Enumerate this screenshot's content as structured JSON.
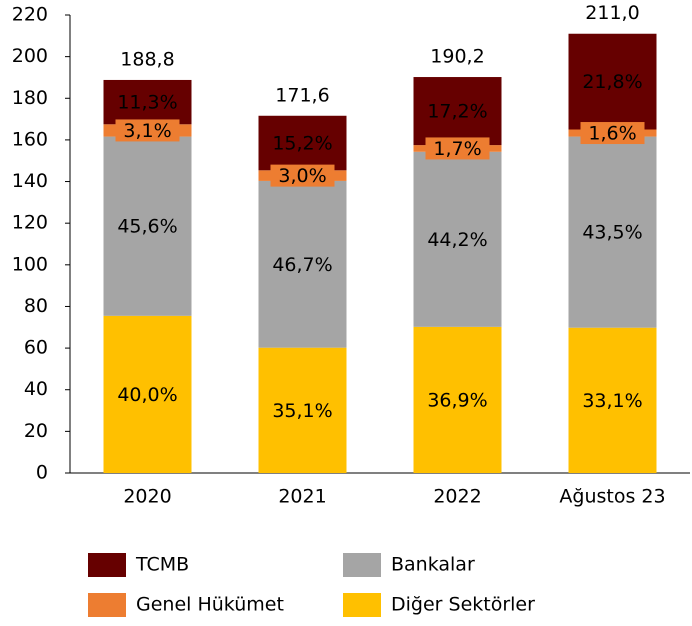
{
  "chart_data": {
    "type": "stacked_bar",
    "categories": [
      "2020",
      "2021",
      "2022",
      "Ağustos 23"
    ],
    "series": [
      {
        "name": "Diğer Sektörler",
        "color": "#ffc000",
        "values": [
          75.5,
          60.2,
          70.2,
          69.8
        ],
        "share_labels": [
          "40,0%",
          "35,1%",
          "36,9%",
          "33,1%"
        ]
      },
      {
        "name": "Bankalar",
        "color": "#a5a5a5",
        "values": [
          86.1,
          80.1,
          84.1,
          91.8
        ],
        "share_labels": [
          "45,6%",
          "46,7%",
          "44,2%",
          "43,5%"
        ]
      },
      {
        "name": "Genel Hükümet",
        "color": "#ed7d31",
        "values": [
          5.9,
          5.1,
          3.2,
          3.4
        ],
        "share_labels": [
          "3,1%",
          "3,0%",
          "1,7%",
          "1,6%"
        ]
      },
      {
        "name": "TCMB",
        "color": "#660000",
        "values": [
          21.3,
          26.2,
          32.7,
          46.0
        ],
        "share_labels": [
          "11,3%",
          "15,2%",
          "17,2%",
          "21,8%"
        ]
      }
    ],
    "totals": {
      "values": [
        188.8,
        171.6,
        190.2,
        211.0
      ],
      "value_labels": [
        "188,8",
        "171,6",
        "190,2",
        "211,0"
      ]
    },
    "ylim": [
      0,
      220
    ],
    "yticks": [
      0,
      20,
      40,
      60,
      80,
      100,
      120,
      140,
      160,
      180,
      200,
      220
    ]
  }
}
